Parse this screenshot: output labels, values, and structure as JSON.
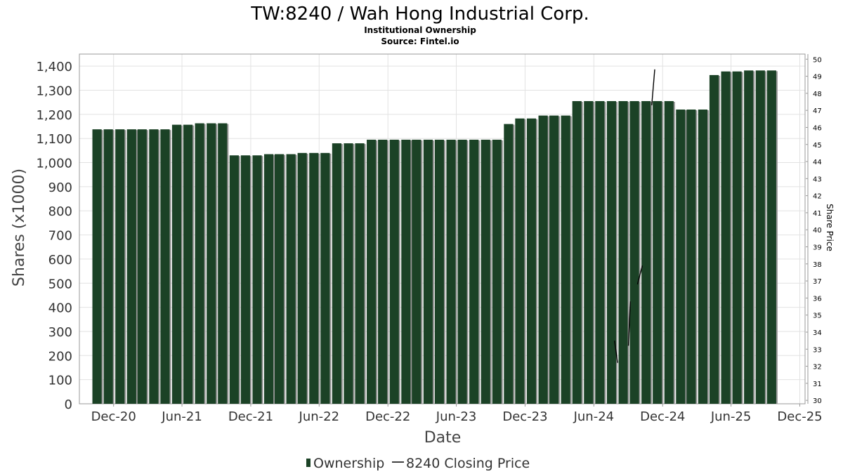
{
  "chart_data": {
    "type": "bar",
    "title": "TW:8240 / Wah Hong Industrial Corp.",
    "subtitle": "Institutional Ownership",
    "source": "Source: Fintel.io",
    "xlabel": "Date",
    "ylabel": "Shares (x1000)",
    "y2label": "Share Price",
    "ylim": [
      0,
      1450
    ],
    "y2lim": [
      29.8,
      50.3
    ],
    "xlim": [
      "2020-09-01",
      "2025-12-15"
    ],
    "yticks": [
      0,
      100,
      200,
      300,
      400,
      500,
      600,
      700,
      800,
      900,
      1000,
      1100,
      1200,
      1300,
      1400
    ],
    "ytick_labels": [
      "0",
      "100",
      "200",
      "300",
      "400",
      "500",
      "600",
      "700",
      "800",
      "900",
      "1,000",
      "1,100",
      "1,200",
      "1,300",
      "1,400"
    ],
    "y2ticks": [
      30,
      31,
      32,
      33,
      34,
      35,
      36,
      37,
      38,
      39,
      40,
      41,
      42,
      43,
      44,
      45,
      46,
      47,
      48,
      49,
      50
    ],
    "xticks": [
      {
        "date": "2020-12-01",
        "label": "Dec-20"
      },
      {
        "date": "2021-06-01",
        "label": "Jun-21"
      },
      {
        "date": "2021-12-01",
        "label": "Dec-21"
      },
      {
        "date": "2022-06-01",
        "label": "Jun-22"
      },
      {
        "date": "2022-12-01",
        "label": "Dec-22"
      },
      {
        "date": "2023-06-01",
        "label": "Jun-23"
      },
      {
        "date": "2023-12-01",
        "label": "Dec-23"
      },
      {
        "date": "2024-06-01",
        "label": "Jun-24"
      },
      {
        "date": "2024-12-01",
        "label": "Dec-24"
      },
      {
        "date": "2025-06-01",
        "label": "Jun-25"
      },
      {
        "date": "2025-12-01",
        "label": "Dec-25"
      }
    ],
    "grid": true,
    "legend_position": "bottom-center",
    "colors": {
      "bar": "#1b4226",
      "bar_shadow": "#999999",
      "price_line": "#000000",
      "grid": "#e2e2e2",
      "frame": "#999999"
    },
    "series": [
      {
        "name": "Ownership",
        "type": "bar",
        "x": [
          "2020-10-31",
          "2020-11-30",
          "2020-12-31",
          "2021-01-31",
          "2021-02-28",
          "2021-03-31",
          "2021-04-30",
          "2021-05-31",
          "2021-06-30",
          "2021-07-31",
          "2021-08-31",
          "2021-09-30",
          "2021-10-31",
          "2021-11-30",
          "2021-12-31",
          "2022-01-31",
          "2022-02-28",
          "2022-03-31",
          "2022-04-30",
          "2022-05-31",
          "2022-06-30",
          "2022-07-31",
          "2022-08-31",
          "2022-09-30",
          "2022-10-31",
          "2022-11-30",
          "2022-12-31",
          "2023-01-31",
          "2023-02-28",
          "2023-03-31",
          "2023-04-30",
          "2023-05-31",
          "2023-06-30",
          "2023-07-31",
          "2023-08-31",
          "2023-09-30",
          "2023-10-31",
          "2023-11-30",
          "2023-12-31",
          "2024-01-31",
          "2024-02-29",
          "2024-03-31",
          "2024-04-30",
          "2024-05-31",
          "2024-06-30",
          "2024-07-31",
          "2024-08-31",
          "2024-09-30",
          "2024-10-31",
          "2024-11-30",
          "2024-12-31",
          "2025-01-31",
          "2025-02-28",
          "2025-03-31",
          "2025-04-30",
          "2025-05-31",
          "2025-06-30",
          "2025-07-31",
          "2025-08-31",
          "2025-09-30"
        ],
        "values": [
          1138,
          1138,
          1138,
          1138,
          1138,
          1138,
          1138,
          1157,
          1157,
          1163,
          1163,
          1163,
          1030,
          1030,
          1030,
          1035,
          1035,
          1035,
          1040,
          1040,
          1040,
          1080,
          1080,
          1080,
          1095,
          1095,
          1095,
          1095,
          1095,
          1095,
          1095,
          1095,
          1095,
          1095,
          1095,
          1095,
          1160,
          1183,
          1183,
          1195,
          1195,
          1195,
          1255,
          1255,
          1255,
          1255,
          1255,
          1255,
          1255,
          1255,
          1255,
          1220,
          1220,
          1220,
          1363,
          1378,
          1378,
          1382,
          1382,
          1382
        ]
      },
      {
        "name": "8240 Closing Price",
        "type": "line",
        "segments": [
          [
            {
              "x": "2024-07-26",
              "y": 33.5
            },
            {
              "x": "2024-08-03",
              "y": 32.2
            }
          ],
          [
            {
              "x": "2024-09-01",
              "y": 33.2
            },
            {
              "x": "2024-09-06",
              "y": 35.8
            }
          ],
          [
            {
              "x": "2024-09-25",
              "y": 36.8
            },
            {
              "x": "2024-10-08",
              "y": 37.9
            }
          ],
          [
            {
              "x": "2024-11-02",
              "y": 47.3
            },
            {
              "x": "2024-11-10",
              "y": 49.4
            }
          ]
        ]
      }
    ],
    "legend": [
      {
        "label": "Ownership",
        "marker": "bar"
      },
      {
        "label": "8240 Closing Price",
        "marker": "line"
      }
    ]
  }
}
